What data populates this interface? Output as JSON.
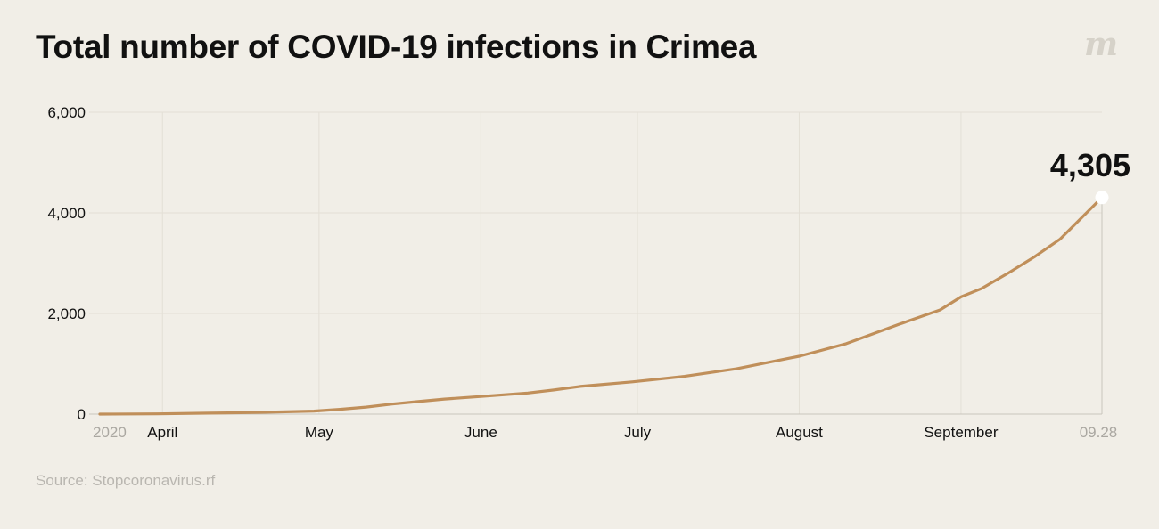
{
  "header": {
    "title": "Total number of COVID-19 infections in Crimea",
    "logo_text": "m"
  },
  "footer": {
    "source": "Source: Stopcoronavirus.rf"
  },
  "chart_data": {
    "type": "line",
    "title": "Total number of COVID-19 infections in Crimea",
    "xlabel": "",
    "ylabel": "",
    "ylim": [
      0,
      6000
    ],
    "yticks": [
      0,
      2000,
      4000,
      6000
    ],
    "ytick_labels": [
      "0",
      "2,000",
      "4,000",
      "6,000"
    ],
    "x_range": [
      "2020-03-20",
      "2020-09-28"
    ],
    "xticks": [
      {
        "date": "2020-03-20",
        "label": "2020",
        "muted": true,
        "grid": false
      },
      {
        "date": "2020-04-01",
        "label": "April",
        "muted": false,
        "grid": true
      },
      {
        "date": "2020-05-01",
        "label": "May",
        "muted": false,
        "grid": true
      },
      {
        "date": "2020-06-01",
        "label": "June",
        "muted": false,
        "grid": true
      },
      {
        "date": "2020-07-01",
        "label": "July",
        "muted": false,
        "grid": true
      },
      {
        "date": "2020-08-01",
        "label": "August",
        "muted": false,
        "grid": true
      },
      {
        "date": "2020-09-01",
        "label": "September",
        "muted": false,
        "grid": true
      },
      {
        "date": "2020-09-28",
        "label": "09.28",
        "muted": true,
        "grid": false
      }
    ],
    "grid": true,
    "line_color": "#c08f5a",
    "end_value_label": "4,305",
    "series": [
      {
        "values": [
          {
            "x": "2020-03-20",
            "y": 0
          },
          {
            "x": "2020-03-31",
            "y": 5
          },
          {
            "x": "2020-04-10",
            "y": 20
          },
          {
            "x": "2020-04-20",
            "y": 35
          },
          {
            "x": "2020-04-30",
            "y": 60
          },
          {
            "x": "2020-05-05",
            "y": 95
          },
          {
            "x": "2020-05-10",
            "y": 140
          },
          {
            "x": "2020-05-15",
            "y": 200
          },
          {
            "x": "2020-05-20",
            "y": 250
          },
          {
            "x": "2020-05-25",
            "y": 300
          },
          {
            "x": "2020-06-01",
            "y": 350
          },
          {
            "x": "2020-06-10",
            "y": 420
          },
          {
            "x": "2020-06-15",
            "y": 480
          },
          {
            "x": "2020-06-20",
            "y": 550
          },
          {
            "x": "2020-06-30",
            "y": 640
          },
          {
            "x": "2020-07-10",
            "y": 750
          },
          {
            "x": "2020-07-20",
            "y": 900
          },
          {
            "x": "2020-08-01",
            "y": 1150
          },
          {
            "x": "2020-08-10",
            "y": 1400
          },
          {
            "x": "2020-08-20",
            "y": 1780
          },
          {
            "x": "2020-08-28",
            "y": 2070
          },
          {
            "x": "2020-09-01",
            "y": 2330
          },
          {
            "x": "2020-09-05",
            "y": 2500
          },
          {
            "x": "2020-09-10",
            "y": 2800
          },
          {
            "x": "2020-09-15",
            "y": 3120
          },
          {
            "x": "2020-09-20",
            "y": 3480
          },
          {
            "x": "2020-09-28",
            "y": 4305
          }
        ]
      }
    ]
  }
}
